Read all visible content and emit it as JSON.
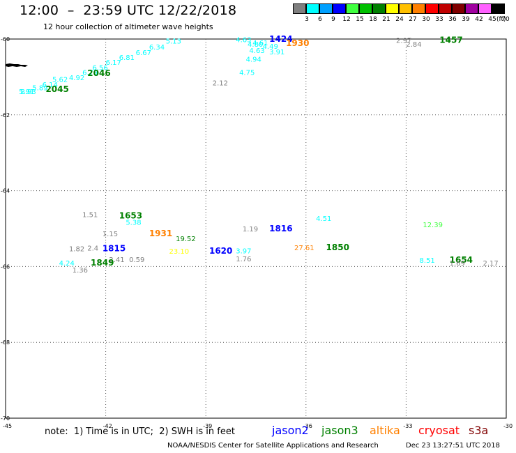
{
  "header": {
    "title": "12:00  –  23:59 UTC 12/22/2018",
    "subtitle": "12 hour collection of altimeter wave heights"
  },
  "legend": {
    "unit": "(ft)",
    "bins": [
      {
        "label": "3",
        "color": "#7f7f7f"
      },
      {
        "label": "6",
        "color": "#00ffff"
      },
      {
        "label": "9",
        "color": "#00a0ff"
      },
      {
        "label": "12",
        "color": "#0000ff"
      },
      {
        "label": "15",
        "color": "#40ff40"
      },
      {
        "label": "18",
        "color": "#00c000"
      },
      {
        "label": "21",
        "color": "#008000"
      },
      {
        "label": "24",
        "color": "#ffff00"
      },
      {
        "label": "27",
        "color": "#ffc000"
      },
      {
        "label": "30",
        "color": "#ff8000"
      },
      {
        "label": "33",
        "color": "#ff0000"
      },
      {
        "label": "36",
        "color": "#c00000"
      },
      {
        "label": "39",
        "color": "#800000"
      },
      {
        "label": "42",
        "color": "#a000a0"
      },
      {
        "label": "45",
        "color": "#ff60ff"
      },
      {
        "label": "70",
        "color": "#000000"
      }
    ]
  },
  "axes": {
    "lon_labels": [
      "-45",
      "-42",
      "-39",
      "-36",
      "-33",
      "-30"
    ],
    "lon_values": [
      -45,
      -42,
      -39,
      -36,
      -33,
      -30
    ],
    "lat_labels": [
      "-60",
      "-62",
      "-64",
      "-66",
      "-68",
      "-70"
    ],
    "lat_values": [
      -60,
      -62,
      -64,
      -66,
      -68,
      -70
    ],
    "extent": {
      "lon_min": -45,
      "lon_max": -30,
      "lat_max": -60,
      "lat_min": -70
    }
  },
  "observations": [
    {
      "lon": -40.2,
      "lat": -60.12,
      "text": "5.13",
      "color": "#00ffff"
    },
    {
      "lon": -40.7,
      "lat": -60.28,
      "text": "6.34",
      "color": "#00ffff"
    },
    {
      "lon": -41.1,
      "lat": -60.42,
      "text": "6.67",
      "color": "#00ffff"
    },
    {
      "lon": -41.6,
      "lat": -60.55,
      "text": "6.81",
      "color": "#00ffff"
    },
    {
      "lon": -42.0,
      "lat": -60.68,
      "text": "6.17",
      "color": "#00ffff"
    },
    {
      "lon": -42.4,
      "lat": -60.82,
      "text": "6.56",
      "color": "#00ffff"
    },
    {
      "lon": -42.7,
      "lat": -60.95,
      "text": "6.79",
      "color": "#00ffff"
    },
    {
      "lon": -43.1,
      "lat": -61.08,
      "text": "4.92",
      "color": "#00ffff"
    },
    {
      "lon": -43.6,
      "lat": -61.13,
      "text": "5.62",
      "color": "#00ffff"
    },
    {
      "lon": -43.9,
      "lat": -61.27,
      "text": "6.14",
      "color": "#00ffff"
    },
    {
      "lon": -44.2,
      "lat": -61.35,
      "text": "5.89",
      "color": "#00ffff"
    },
    {
      "lon": -44.6,
      "lat": -61.45,
      "text": "5.91",
      "color": "#00ffff"
    },
    {
      "lon": -44.55,
      "lat": -61.45,
      "text": "8.93",
      "color": "#00ffff"
    },
    {
      "lon": -43.8,
      "lat": -61.4,
      "text": "2045",
      "color": "#008000",
      "time": true
    },
    {
      "lon": -42.55,
      "lat": -60.97,
      "text": "2046",
      "color": "#008000",
      "time": true
    },
    {
      "lon": -38.1,
      "lat": -60.08,
      "text": "4.63",
      "color": "#00ffff"
    },
    {
      "lon": -37.6,
      "lat": -60.17,
      "text": "4.61",
      "color": "#00ffff"
    },
    {
      "lon": -37.75,
      "lat": -60.2,
      "text": "4.80",
      "color": "#00ffff"
    },
    {
      "lon": -37.3,
      "lat": -60.26,
      "text": "4.49",
      "color": "#00ffff"
    },
    {
      "lon": -37.7,
      "lat": -60.37,
      "text": "4.63",
      "color": "#00ffff"
    },
    {
      "lon": -37.1,
      "lat": -60.4,
      "text": "3.91",
      "color": "#00ffff"
    },
    {
      "lon": -37.8,
      "lat": -60.6,
      "text": "4.94",
      "color": "#00ffff"
    },
    {
      "lon": -38.0,
      "lat": -60.95,
      "text": "4.75",
      "color": "#00ffff"
    },
    {
      "lon": -38.8,
      "lat": -61.22,
      "text": "2.12",
      "color": "#7f7f7f"
    },
    {
      "lon": -37.1,
      "lat": -60.07,
      "text": "1424",
      "color": "#0000ff",
      "time": true
    },
    {
      "lon": -36.6,
      "lat": -60.18,
      "text": "1930",
      "color": "#ff8000",
      "time": true
    },
    {
      "lon": -33.3,
      "lat": -60.1,
      "text": "2.97",
      "color": "#7f7f7f"
    },
    {
      "lon": -33.0,
      "lat": -60.2,
      "text": "2.84",
      "color": "#7f7f7f"
    },
    {
      "lon": -32.0,
      "lat": -60.1,
      "text": "1457",
      "color": "#008000",
      "time": true
    },
    {
      "lon": -42.7,
      "lat": -64.7,
      "text": "1.51",
      "color": "#7f7f7f"
    },
    {
      "lon": -41.6,
      "lat": -64.73,
      "text": "1653",
      "color": "#008000",
      "time": true
    },
    {
      "lon": -41.4,
      "lat": -64.9,
      "text": "5.38",
      "color": "#00ffff"
    },
    {
      "lon": -42.1,
      "lat": -65.2,
      "text": "1.15",
      "color": "#7f7f7f"
    },
    {
      "lon": -40.7,
      "lat": -65.2,
      "text": "1931",
      "color": "#ff8000",
      "time": true
    },
    {
      "lon": -39.9,
      "lat": -65.33,
      "text": "19.52",
      "color": "#008000"
    },
    {
      "lon": -43.1,
      "lat": -65.6,
      "text": "1.82",
      "color": "#7f7f7f"
    },
    {
      "lon": -42.55,
      "lat": -65.58,
      "text": "2.4",
      "color": "#7f7f7f"
    },
    {
      "lon": -42.1,
      "lat": -65.6,
      "text": "1815",
      "color": "#0000ff",
      "time": true
    },
    {
      "lon": -40.1,
      "lat": -65.66,
      "text": "23.10",
      "color": "#ffff00"
    },
    {
      "lon": -38.9,
      "lat": -65.66,
      "text": "1620",
      "color": "#0000ff",
      "time": true
    },
    {
      "lon": -41.9,
      "lat": -65.88,
      "text": "2.41",
      "color": "#7f7f7f"
    },
    {
      "lon": -41.3,
      "lat": -65.88,
      "text": "0.59",
      "color": "#7f7f7f"
    },
    {
      "lon": -43.4,
      "lat": -65.97,
      "text": "4.24",
      "color": "#00ffff"
    },
    {
      "lon": -42.45,
      "lat": -65.97,
      "text": "1849",
      "color": "#008000",
      "time": true
    },
    {
      "lon": -43.0,
      "lat": -66.16,
      "text": "1.36",
      "color": "#7f7f7f"
    },
    {
      "lon": -37.9,
      "lat": -65.07,
      "text": "1.19",
      "color": "#7f7f7f"
    },
    {
      "lon": -37.1,
      "lat": -65.07,
      "text": "1816",
      "color": "#0000ff",
      "time": true
    },
    {
      "lon": -35.7,
      "lat": -64.8,
      "text": "4.51",
      "color": "#00ffff"
    },
    {
      "lon": -36.35,
      "lat": -65.57,
      "text": "27.61",
      "color": "#ff8000"
    },
    {
      "lon": -35.4,
      "lat": -65.57,
      "text": "1850",
      "color": "#008000",
      "time": true
    },
    {
      "lon": -38.1,
      "lat": -65.65,
      "text": "3.97",
      "color": "#00ffff"
    },
    {
      "lon": -38.1,
      "lat": -65.86,
      "text": "1.76",
      "color": "#7f7f7f"
    },
    {
      "lon": -32.5,
      "lat": -64.96,
      "text": "12.39",
      "color": "#40ff40"
    },
    {
      "lon": -32.6,
      "lat": -65.9,
      "text": "8.51",
      "color": "#00ffff"
    },
    {
      "lon": -31.7,
      "lat": -65.9,
      "text": "1654",
      "color": "#008000",
      "time": true
    },
    {
      "lon": -31.7,
      "lat": -65.97,
      "text": "1.69",
      "color": "#7f7f7f"
    },
    {
      "lon": -30.7,
      "lat": -65.97,
      "text": "2.17",
      "color": "#7f7f7f"
    }
  ],
  "footer": {
    "note": "note:  1) Time is in UTC;  2) SWH is in feet",
    "satellites": [
      {
        "name": "jason2",
        "color": "#0000ff"
      },
      {
        "name": "jason3",
        "color": "#008000"
      },
      {
        "name": "altika",
        "color": "#ff8000"
      },
      {
        "name": "cryosat",
        "color": "#ff0000"
      },
      {
        "name": "s3a",
        "color": "#800000"
      }
    ],
    "credit": "NOAA/NESDIS Center for Satellite Applications and Research",
    "timestamp": "Dec 23 13:27:51 UTC 2018"
  }
}
